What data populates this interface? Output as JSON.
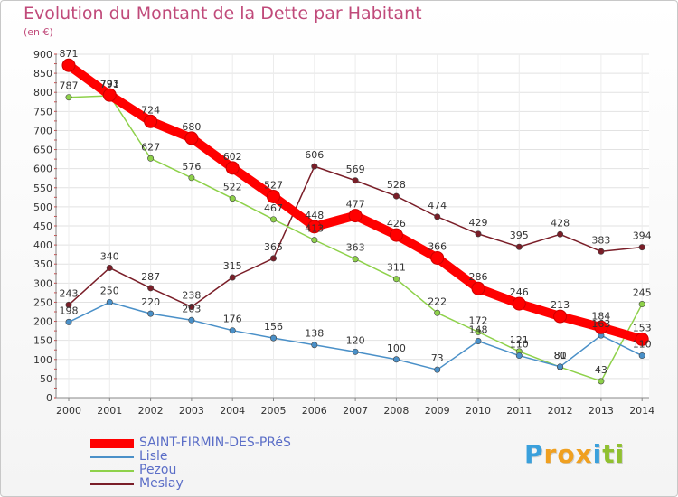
{
  "header": {
    "title": "Evolution du Montant de la Dette par Habitant",
    "unit": "(en €)"
  },
  "logo": {
    "letters": [
      "P",
      "r",
      "o",
      "x",
      "i",
      "t",
      "i"
    ],
    "colors": [
      "#3aa0dc",
      "#f0a020",
      "#f0a020",
      "#f0a020",
      "#3aa0dc",
      "#90c030",
      "#90c030"
    ]
  },
  "chart_data": {
    "type": "line",
    "title": "Evolution du Montant de la Dette par Habitant",
    "ylabel": "(en €)",
    "xlabel": "",
    "ylim": [
      0,
      900
    ],
    "yticks": [
      0,
      50,
      100,
      150,
      200,
      250,
      300,
      350,
      400,
      450,
      500,
      550,
      600,
      650,
      700,
      750,
      800,
      850,
      900
    ],
    "grid": true,
    "legend": "bottom-left",
    "x": [
      "2000",
      "2001",
      "2002",
      "2003",
      "2004",
      "2005",
      "2006",
      "2007",
      "2008",
      "2009",
      "2010",
      "2011",
      "2012",
      "2013",
      "2014"
    ],
    "series": [
      {
        "name": "SAINT-FIRMIN-DES-PRéS",
        "color": "#ff0000",
        "values": [
          871,
          793,
          724,
          680,
          602,
          527,
          448,
          477,
          426,
          366,
          286,
          246,
          213,
          184,
          153
        ]
      },
      {
        "name": "Lisle",
        "color": "#4a90c8",
        "values": [
          198,
          250,
          220,
          203,
          176,
          156,
          138,
          120,
          100,
          73,
          148,
          110,
          81,
          163,
          110
        ]
      },
      {
        "name": "Pezou",
        "color": "#8ed14a",
        "values": [
          787,
          791,
          627,
          576,
          522,
          467,
          413,
          363,
          311,
          222,
          172,
          121,
          80,
          43,
          245
        ]
      },
      {
        "name": "Meslay",
        "color": "#7a1e28",
        "values": [
          243,
          340,
          287,
          238,
          315,
          365,
          606,
          569,
          528,
          474,
          429,
          395,
          428,
          383,
          394
        ]
      }
    ]
  }
}
